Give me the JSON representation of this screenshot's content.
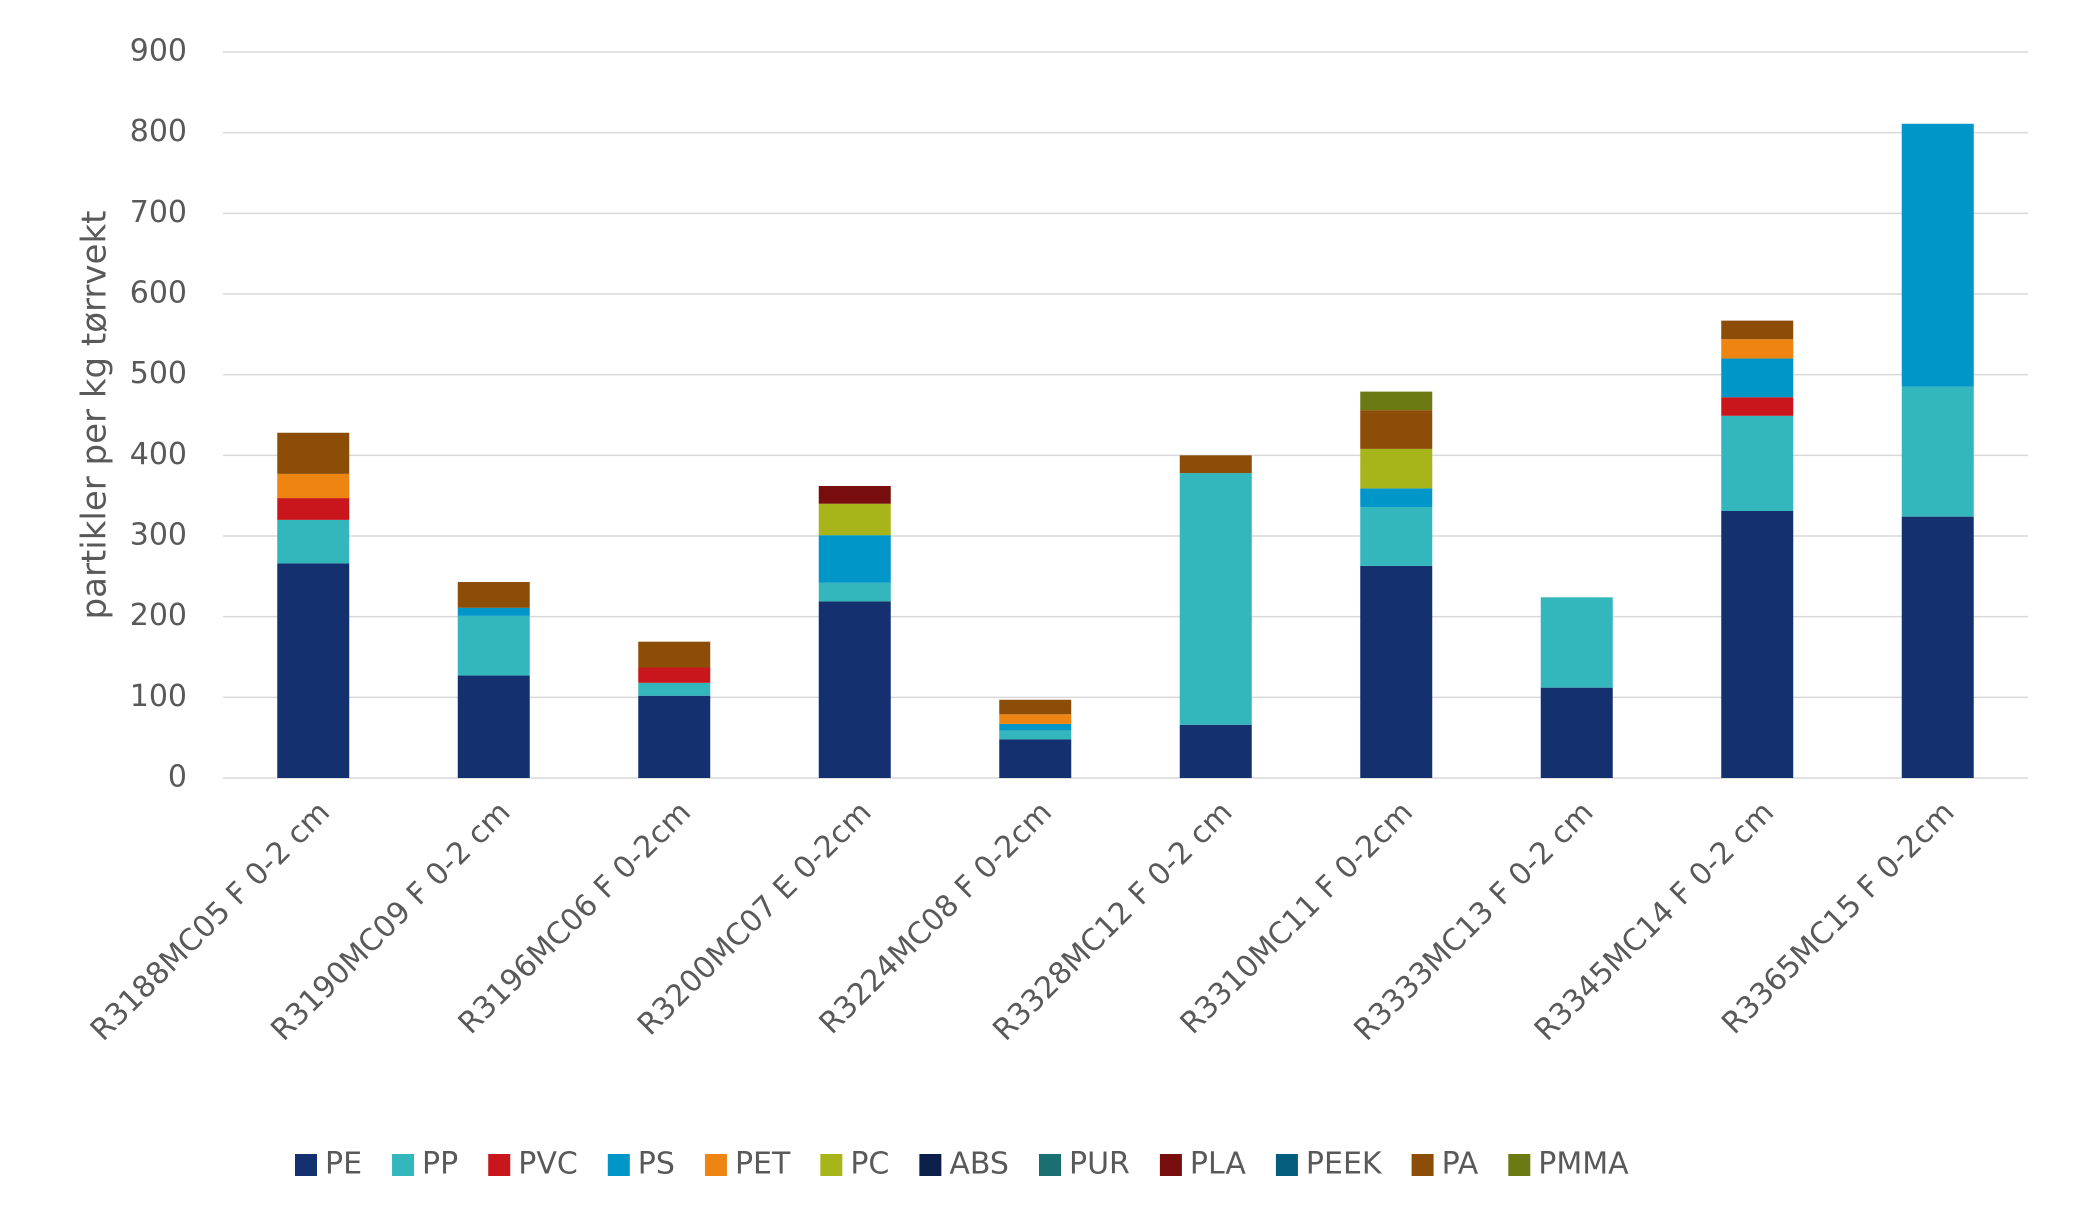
{
  "chart_data": {
    "type": "stacked_bar",
    "y_label": "partikler per kg tørrvekt",
    "categories": [
      "R3188MC05 F 0-2 cm",
      "R3190MC09 F 0-2 cm",
      "R3196MC06 F 0-2cm",
      "R3200MC07 E 0-2cm",
      "R3224MC08 F 0-2cm",
      "R3328MC12 F 0-2 cm",
      "R3310MC11 F 0-2cm",
      "R3333MC13 F 0-2 cm",
      "R3345MC14 F 0-2 cm",
      "R3365MC15 F 0-2cm"
    ],
    "series": [
      {
        "name": "PE",
        "color": "#14306f",
        "values": [
          266,
          127,
          102,
          219,
          48,
          66,
          263,
          112,
          331,
          324
        ]
      },
      {
        "name": "PP",
        "color": "#33b6bc",
        "values": [
          54,
          74,
          16,
          23,
          11,
          312,
          73,
          112,
          118,
          161
        ]
      },
      {
        "name": "PVC",
        "color": "#c8161c",
        "values": [
          27,
          0,
          19,
          0,
          0,
          0,
          0,
          0,
          23,
          0
        ]
      },
      {
        "name": "PS",
        "color": "#0096c8",
        "values": [
          0,
          10,
          0,
          59,
          8,
          0,
          23,
          0,
          48,
          326
        ]
      },
      {
        "name": "PET",
        "color": "#ee8412",
        "values": [
          30,
          0,
          0,
          0,
          12,
          0,
          0,
          0,
          24,
          0
        ]
      },
      {
        "name": "PC",
        "color": "#a8b51a",
        "values": [
          0,
          0,
          0,
          39,
          0,
          0,
          49,
          0,
          0,
          0
        ]
      },
      {
        "name": "ABS",
        "color": "#0c1f4b",
        "values": [
          0,
          0,
          0,
          0,
          0,
          0,
          0,
          0,
          0,
          0
        ]
      },
      {
        "name": "PUR",
        "color": "#1a6f70",
        "values": [
          0,
          0,
          0,
          0,
          0,
          0,
          0,
          0,
          0,
          0
        ]
      },
      {
        "name": "PLA",
        "color": "#780d0d",
        "values": [
          0,
          0,
          0,
          22,
          0,
          0,
          0,
          0,
          0,
          0
        ]
      },
      {
        "name": "PEEK",
        "color": "#055d7d",
        "values": [
          0,
          0,
          0,
          0,
          0,
          0,
          0,
          0,
          0,
          0
        ]
      },
      {
        "name": "PA",
        "color": "#8b4d08",
        "values": [
          51,
          32,
          32,
          0,
          18,
          22,
          48,
          0,
          23,
          0
        ]
      },
      {
        "name": "PMMA",
        "color": "#6b7a12",
        "values": [
          0,
          0,
          0,
          0,
          0,
          0,
          23,
          0,
          0,
          0
        ]
      }
    ],
    "ylim": [
      0,
      900
    ],
    "yticks": [
      0,
      100,
      200,
      300,
      400,
      500,
      600,
      700,
      800,
      900
    ],
    "grid": true,
    "legend": "bottom"
  }
}
